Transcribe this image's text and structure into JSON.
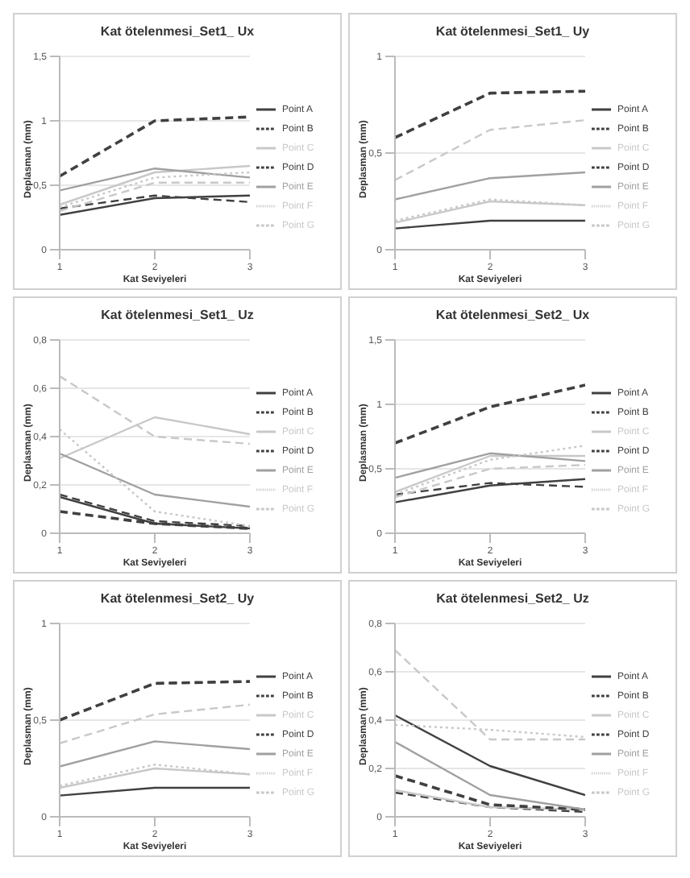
{
  "chart_data": [
    {
      "type": "line",
      "title": "Kat ötelenmesi_Set1_ Ux",
      "xlabel": "Kat Seviyeleri",
      "ylabel": "Deplasman (mm)",
      "x": [
        1,
        2,
        3
      ],
      "xlim": [
        1,
        3
      ],
      "xticks": [
        1,
        2,
        3
      ],
      "ylim": [
        0,
        1.5
      ],
      "yticks": [
        {
          "value": 0,
          "label": "0"
        },
        {
          "value": 0.5,
          "label": "0,5"
        },
        {
          "value": 1,
          "label": "1"
        },
        {
          "value": 1.5,
          "label": "1,5"
        }
      ],
      "grid": "y",
      "legend": "right",
      "series": [
        {
          "name": "Point A",
          "color": "#404040",
          "line_style": "solid",
          "values": [
            0.27,
            0.4,
            0.42
          ]
        },
        {
          "name": "Point B",
          "color": "#404040",
          "line_style": "dashed",
          "values": [
            0.32,
            0.42,
            0.37
          ]
        },
        {
          "name": "Point C",
          "color": "#c8c8c8",
          "line_style": "solid",
          "values": [
            0.35,
            0.6,
            0.65
          ]
        },
        {
          "name": "Point D",
          "color": "#404040",
          "line_style": "dashed",
          "values": [
            0.57,
            1.0,
            1.03
          ]
        },
        {
          "name": "Point E",
          "color": "#a0a0a0",
          "line_style": "solid",
          "values": [
            0.46,
            0.63,
            0.56
          ]
        },
        {
          "name": "Point F",
          "color": "#c8c8c8",
          "line_style": "dotted",
          "values": [
            0.33,
            0.56,
            0.6
          ]
        },
        {
          "name": "Point G",
          "color": "#c8c8c8",
          "line_style": "dashed",
          "values": [
            0.3,
            0.52,
            0.52
          ]
        }
      ]
    },
    {
      "type": "line",
      "title": "Kat ötelenmesi_Set1_ Uy",
      "xlabel": "Kat Seviyeleri",
      "ylabel": "Deplasman (mm)",
      "x": [
        1,
        2,
        3
      ],
      "xlim": [
        1,
        3
      ],
      "xticks": [
        1,
        2,
        3
      ],
      "ylim": [
        0,
        1
      ],
      "yticks": [
        {
          "value": 0,
          "label": "0"
        },
        {
          "value": 0.5,
          "label": "0,5"
        },
        {
          "value": 1,
          "label": "1"
        }
      ],
      "grid": "y",
      "legend": "right",
      "series": [
        {
          "name": "Point A",
          "color": "#404040",
          "line_style": "solid",
          "values": [
            0.11,
            0.15,
            0.15
          ]
        },
        {
          "name": "Point B",
          "color": "#404040",
          "line_style": "dashed",
          "values": [
            0.58,
            0.81,
            0.82
          ]
        },
        {
          "name": "Point C",
          "color": "#c8c8c8",
          "line_style": "solid",
          "values": [
            0.14,
            0.25,
            0.23
          ]
        },
        {
          "name": "Point D",
          "color": "#404040",
          "line_style": "dashed",
          "values": [
            0.58,
            0.81,
            0.82
          ]
        },
        {
          "name": "Point E",
          "color": "#a0a0a0",
          "line_style": "solid",
          "values": [
            0.26,
            0.37,
            0.4
          ]
        },
        {
          "name": "Point F",
          "color": "#c8c8c8",
          "line_style": "dotted",
          "values": [
            0.15,
            0.26,
            0.23
          ]
        },
        {
          "name": "Point G",
          "color": "#c8c8c8",
          "line_style": "dashed",
          "values": [
            0.36,
            0.62,
            0.67
          ]
        }
      ]
    },
    {
      "type": "line",
      "title": "Kat ötelenmesi_Set1_ Uz",
      "xlabel": "Kat Seviyeleri",
      "ylabel": "Deplasman (mm)",
      "x": [
        1,
        2,
        3
      ],
      "xlim": [
        1,
        3
      ],
      "xticks": [
        1,
        2,
        3
      ],
      "ylim": [
        0,
        0.8
      ],
      "yticks": [
        {
          "value": 0,
          "label": "0"
        },
        {
          "value": 0.2,
          "label": "0,2"
        },
        {
          "value": 0.4,
          "label": "0,4"
        },
        {
          "value": 0.6,
          "label": "0,6"
        },
        {
          "value": 0.8,
          "label": "0,8"
        }
      ],
      "grid": "y",
      "legend": "right",
      "series": [
        {
          "name": "Point A",
          "color": "#404040",
          "line_style": "solid",
          "values": [
            0.15,
            0.04,
            0.02
          ]
        },
        {
          "name": "Point B",
          "color": "#404040",
          "line_style": "dashed",
          "values": [
            0.16,
            0.05,
            0.03
          ]
        },
        {
          "name": "Point C",
          "color": "#c8c8c8",
          "line_style": "solid",
          "values": [
            0.31,
            0.48,
            0.41
          ]
        },
        {
          "name": "Point D",
          "color": "#404040",
          "line_style": "dashed",
          "values": [
            0.09,
            0.04,
            0.02
          ]
        },
        {
          "name": "Point E",
          "color": "#a0a0a0",
          "line_style": "solid",
          "values": [
            0.33,
            0.16,
            0.11
          ]
        },
        {
          "name": "Point F",
          "color": "#c8c8c8",
          "line_style": "dotted",
          "values": [
            0.43,
            0.09,
            0.03
          ]
        },
        {
          "name": "Point G",
          "color": "#c8c8c8",
          "line_style": "dashed",
          "values": [
            0.65,
            0.4,
            0.37
          ]
        }
      ]
    },
    {
      "type": "line",
      "title": "Kat ötelenmesi_Set2_ Ux",
      "xlabel": "Kat Seviyeleri",
      "ylabel": "Deplasman (mm)",
      "x": [
        1,
        2,
        3
      ],
      "xlim": [
        1,
        3
      ],
      "xticks": [
        1,
        2,
        3
      ],
      "ylim": [
        0,
        1.5
      ],
      "yticks": [
        {
          "value": 0,
          "label": "0"
        },
        {
          "value": 0.5,
          "label": "0,5"
        },
        {
          "value": 1,
          "label": "1"
        },
        {
          "value": 1.5,
          "label": "1,5"
        }
      ],
      "grid": "y",
      "legend": "right",
      "series": [
        {
          "name": "Point A",
          "color": "#404040",
          "line_style": "solid",
          "values": [
            0.24,
            0.37,
            0.42
          ]
        },
        {
          "name": "Point B",
          "color": "#404040",
          "line_style": "dashed",
          "values": [
            0.3,
            0.39,
            0.36
          ]
        },
        {
          "name": "Point C",
          "color": "#c8c8c8",
          "line_style": "solid",
          "values": [
            0.32,
            0.6,
            0.6
          ]
        },
        {
          "name": "Point D",
          "color": "#404040",
          "line_style": "dashed",
          "values": [
            0.7,
            0.98,
            1.15
          ]
        },
        {
          "name": "Point E",
          "color": "#a0a0a0",
          "line_style": "solid",
          "values": [
            0.43,
            0.62,
            0.56
          ]
        },
        {
          "name": "Point F",
          "color": "#c8c8c8",
          "line_style": "dotted",
          "values": [
            0.3,
            0.57,
            0.68
          ]
        },
        {
          "name": "Point G",
          "color": "#c8c8c8",
          "line_style": "dashed",
          "values": [
            0.28,
            0.5,
            0.53
          ]
        }
      ]
    },
    {
      "type": "line",
      "title": "Kat ötelenmesi_Set2_ Uy",
      "xlabel": "Kat Seviyeleri",
      "ylabel": "Deplasman (mm)",
      "x": [
        1,
        2,
        3
      ],
      "xlim": [
        1,
        3
      ],
      "xticks": [
        1,
        2,
        3
      ],
      "ylim": [
        0,
        1
      ],
      "yticks": [
        {
          "value": 0,
          "label": "0"
        },
        {
          "value": 0.5,
          "label": "0,5"
        },
        {
          "value": 1,
          "label": "1"
        }
      ],
      "grid": "y",
      "legend": "right",
      "series": [
        {
          "name": "Point A",
          "color": "#404040",
          "line_style": "solid",
          "values": [
            0.11,
            0.15,
            0.15
          ]
        },
        {
          "name": "Point B",
          "color": "#404040",
          "line_style": "dashed",
          "values": [
            0.5,
            0.69,
            0.7
          ]
        },
        {
          "name": "Point C",
          "color": "#c8c8c8",
          "line_style": "solid",
          "values": [
            0.15,
            0.25,
            0.22
          ]
        },
        {
          "name": "Point D",
          "color": "#404040",
          "line_style": "dashed",
          "values": [
            0.5,
            0.69,
            0.7
          ]
        },
        {
          "name": "Point E",
          "color": "#a0a0a0",
          "line_style": "solid",
          "values": [
            0.26,
            0.39,
            0.35
          ]
        },
        {
          "name": "Point F",
          "color": "#c8c8c8",
          "line_style": "dotted",
          "values": [
            0.16,
            0.27,
            0.22
          ]
        },
        {
          "name": "Point G",
          "color": "#c8c8c8",
          "line_style": "dashed",
          "values": [
            0.38,
            0.53,
            0.58
          ]
        }
      ]
    },
    {
      "type": "line",
      "title": "Kat ötelenmesi_Set2_ Uz",
      "xlabel": "Kat Seviyeleri",
      "ylabel": "Deplasman (mm)",
      "x": [
        1,
        2,
        3
      ],
      "xlim": [
        1,
        3
      ],
      "xticks": [
        1,
        2,
        3
      ],
      "ylim": [
        0,
        0.8
      ],
      "yticks": [
        {
          "value": 0,
          "label": "0"
        },
        {
          "value": 0.2,
          "label": "0,2"
        },
        {
          "value": 0.4,
          "label": "0,4"
        },
        {
          "value": 0.6,
          "label": "0,6"
        },
        {
          "value": 0.8,
          "label": "0,8"
        }
      ],
      "grid": "y",
      "legend": "right",
      "series": [
        {
          "name": "Point A",
          "color": "#404040",
          "line_style": "solid",
          "values": [
            0.42,
            0.21,
            0.09
          ]
        },
        {
          "name": "Point B",
          "color": "#404040",
          "line_style": "dashed",
          "values": [
            0.1,
            0.04,
            0.02
          ]
        },
        {
          "name": "Point C",
          "color": "#c8c8c8",
          "line_style": "solid",
          "values": [
            0.11,
            0.04,
            0.03
          ]
        },
        {
          "name": "Point D",
          "color": "#404040",
          "line_style": "dashed",
          "values": [
            0.17,
            0.05,
            0.03
          ]
        },
        {
          "name": "Point E",
          "color": "#a0a0a0",
          "line_style": "solid",
          "values": [
            0.31,
            0.09,
            0.03
          ]
        },
        {
          "name": "Point F",
          "color": "#c8c8c8",
          "line_style": "dotted",
          "values": [
            0.38,
            0.36,
            0.33
          ]
        },
        {
          "name": "Point G",
          "color": "#c8c8c8",
          "line_style": "dashed",
          "values": [
            0.69,
            0.32,
            0.32
          ]
        }
      ]
    }
  ]
}
